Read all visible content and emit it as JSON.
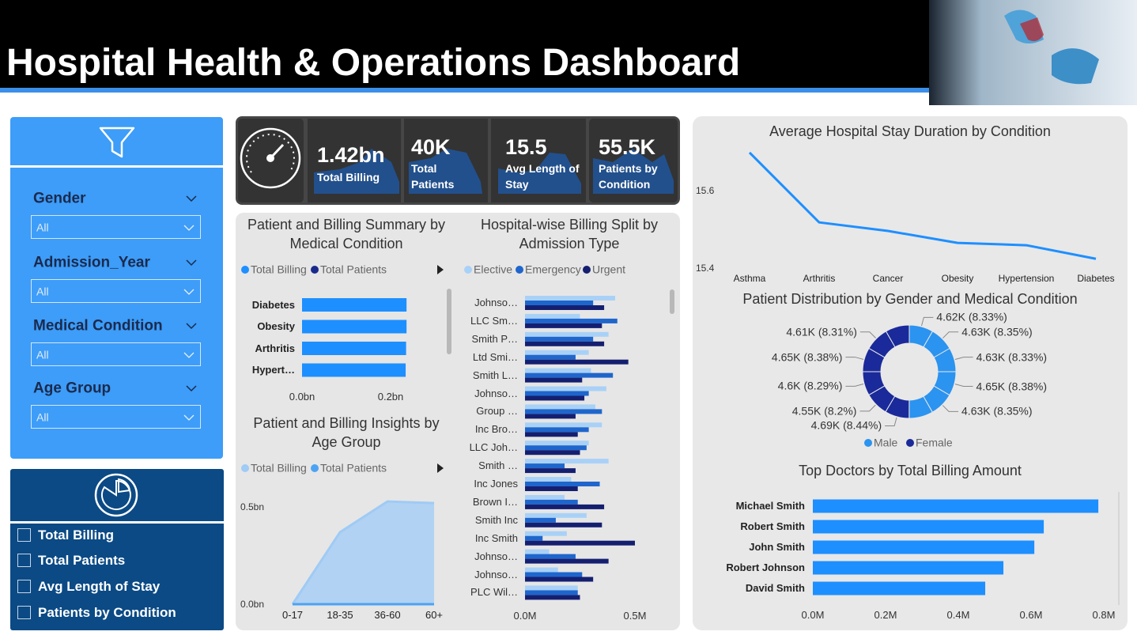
{
  "header": {
    "title": "Hospital Health & Operations Dashboard"
  },
  "filters": [
    {
      "label": "Gender",
      "value": "All"
    },
    {
      "label": "Admission_Year",
      "value": "All"
    },
    {
      "label": "Medical Condition",
      "value": "All"
    },
    {
      "label": "Age Group",
      "value": "All"
    }
  ],
  "measures": [
    "Total Billing",
    "Total Patients",
    "Avg Length of Stay",
    "Patients by Condition"
  ],
  "kpis": [
    {
      "value": "1.42bn",
      "label": "Total Billing"
    },
    {
      "value": "40K",
      "label": "Total Patients"
    },
    {
      "value": "15.5",
      "label": "Avg Length of Stay"
    },
    {
      "value": "55.5K",
      "label": "Patients by Condition"
    }
  ],
  "chart_data": [
    {
      "type": "bar",
      "orientation": "horizontal",
      "title": "Patient and Billing Summary by Medical Condition",
      "categories": [
        "Diabetes",
        "Obesity",
        "Arthritis",
        "Hypert…"
      ],
      "series": [
        {
          "name": "Total Billing",
          "color": "#1e8fff",
          "values": [
            0.236,
            0.236,
            0.235,
            0.234
          ]
        },
        {
          "name": "Total Patients",
          "color": "#1a2a8c",
          "values": [
            0,
            0,
            0,
            0
          ]
        }
      ],
      "xlim": [
        0,
        0.27
      ],
      "xticks": [
        {
          "value": 0,
          "label": "0.0bn"
        },
        {
          "value": 0.2,
          "label": "0.2bn"
        }
      ]
    },
    {
      "type": "area",
      "title": "Patient and Billing Insights by Age Group",
      "categories": [
        "0-17",
        "18-35",
        "36-60",
        "60+"
      ],
      "series": [
        {
          "name": "Total Billing",
          "color": "#9fcbf5",
          "values": [
            0,
            0.37,
            0.528,
            0.52
          ]
        },
        {
          "name": "Total Patients",
          "color": "#4da3f3",
          "values": [
            0,
            0,
            0,
            0
          ]
        }
      ],
      "ylim": [
        0,
        0.6
      ],
      "yticks": [
        {
          "value": 0,
          "label": "0.0bn"
        },
        {
          "value": 0.5,
          "label": "0.5bn"
        }
      ]
    },
    {
      "type": "bar",
      "orientation": "horizontal",
      "title": "Hospital-wise Billing Split by Admission Type",
      "categories": [
        "Johnso…",
        "LLC Sm…",
        "Smith P…",
        "Ltd Smi…",
        "Smith L…",
        "Johnso…",
        "Group …",
        "Inc Bro…",
        "LLC Joh…",
        "Smith …",
        "Inc Jones",
        "Brown I…",
        "Smith Inc",
        "Inc Smith",
        "Johnso…",
        "Johnso…",
        "PLC Wil…"
      ],
      "series": [
        {
          "name": "Elective",
          "color": "#a9d1f7",
          "values": [
            0.41,
            0.25,
            0.38,
            0.29,
            0.3,
            0.37,
            0.32,
            0.35,
            0.29,
            0.38,
            0.21,
            0.18,
            0.28,
            0.19,
            0.11,
            0.15,
            0.24
          ]
        },
        {
          "name": "Emergency",
          "color": "#1f66cc",
          "values": [
            0.31,
            0.42,
            0.31,
            0.23,
            0.4,
            0.29,
            0.35,
            0.29,
            0.28,
            0.18,
            0.34,
            0.24,
            0.14,
            0.08,
            0.23,
            0.26,
            0.24
          ]
        },
        {
          "name": "Urgent",
          "color": "#151f70",
          "values": [
            0.36,
            0.35,
            0.36,
            0.47,
            0.26,
            0.27,
            0.23,
            0.24,
            0.25,
            0.23,
            0.24,
            0.36,
            0.35,
            0.5,
            0.38,
            0.31,
            0.25
          ]
        }
      ],
      "xlim": [
        0,
        0.65
      ],
      "xticks": [
        {
          "value": 0,
          "label": "0.0M"
        },
        {
          "value": 0.5,
          "label": "0.5M"
        }
      ]
    },
    {
      "type": "line",
      "title": "Average Hospital Stay Duration by Condition",
      "categories": [
        "Asthma",
        "Arthritis",
        "Cancer",
        "Obesity",
        "Hypertension",
        "Diabetes"
      ],
      "values": [
        15.698,
        15.518,
        15.496,
        15.465,
        15.459,
        15.424
      ],
      "color": "#1e8fff",
      "ylim": [
        15.4,
        15.73
      ],
      "yticks": [
        15.4,
        15.6
      ]
    },
    {
      "type": "pie",
      "donut": true,
      "title": "Patient Distribution by Gender and Medical Condition",
      "series": [
        {
          "name": "Male",
          "color": "#2b93f0",
          "values": [
            4620,
            4630,
            4630,
            4650,
            4630,
            4620
          ],
          "value_labels": [
            "4.62K (8.33%)",
            "4.63K (8.35%)",
            "4.63K (8.33%)",
            "4.65K (8.38%)",
            "4.63K (8.35%)",
            null
          ]
        },
        {
          "name": "Female",
          "color": "#1a2a9a",
          "values": [
            4690,
            4550,
            4600,
            4650,
            4610,
            4620
          ],
          "value_labels": [
            "4.69K (8.44%)",
            "4.55K (8.2%)",
            "4.6K (8.29%)",
            "4.65K (8.38%)",
            "4.61K (8.31%)",
            null
          ]
        }
      ]
    },
    {
      "type": "bar",
      "orientation": "horizontal",
      "title": "Top Doctors by Total Billing Amount",
      "categories": [
        "Michael Smith",
        "Robert Smith",
        "John Smith",
        "Robert Johnson",
        "David Smith"
      ],
      "values": [
        0.785,
        0.635,
        0.609,
        0.524,
        0.474
      ],
      "color": "#1e8fff",
      "xlim": [
        0,
        0.8
      ],
      "xticks": [
        {
          "value": 0,
          "label": "0.0M"
        },
        {
          "value": 0.2,
          "label": "0.2M"
        },
        {
          "value": 0.4,
          "label": "0.4M"
        },
        {
          "value": 0.6,
          "label": "0.6M"
        },
        {
          "value": 0.8,
          "label": "0.8M"
        }
      ]
    }
  ]
}
